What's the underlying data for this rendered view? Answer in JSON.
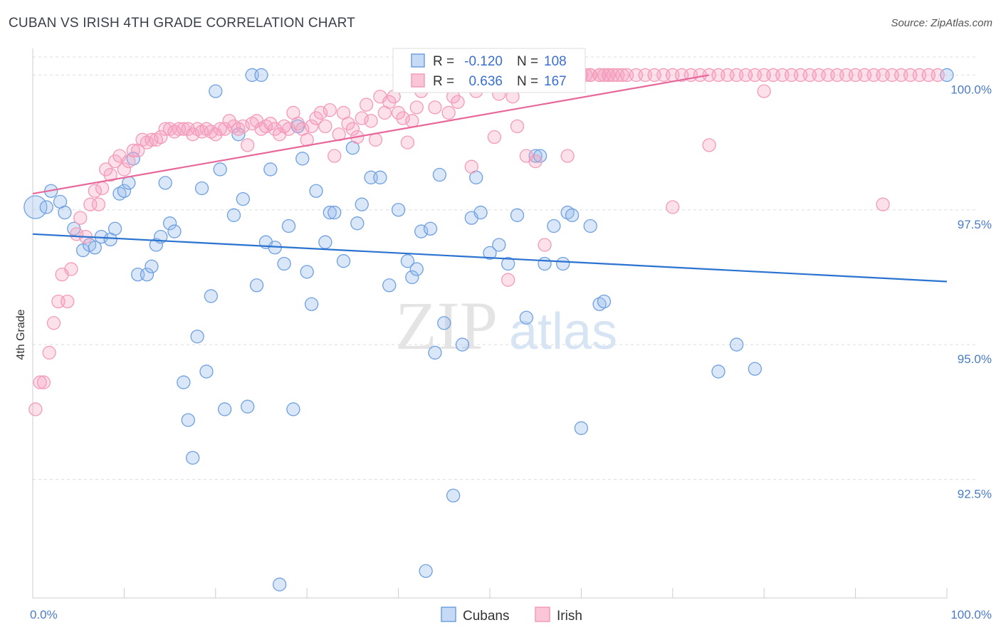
{
  "title": "CUBAN VS IRISH 4TH GRADE CORRELATION CHART",
  "source": "Source: ZipAtlas.com",
  "watermark": {
    "zip": "ZIP",
    "atlas": "atlas"
  },
  "chart_data": {
    "type": "scatter",
    "title": "CUBAN VS IRISH 4TH GRADE CORRELATION CHART",
    "xlabel": "",
    "ylabel": "4th Grade",
    "xlim": [
      0,
      100
    ],
    "ylim": [
      90.3,
      100.6
    ],
    "x_tick_labels": [
      "0.0%",
      "100.0%"
    ],
    "y_ticks": [
      92.5,
      95.0,
      97.5,
      100.0
    ],
    "y_tick_labels": [
      "92.5%",
      "95.0%",
      "97.5%",
      "100.0%"
    ],
    "grid": true,
    "legend_top": [
      {
        "r_label": "R =",
        "r_value": "-0.120",
        "n_label": "N =",
        "n_value": "108"
      },
      {
        "r_label": "R =",
        "r_value": "0.636",
        "n_label": "N =",
        "n_value": "167"
      }
    ],
    "series": [
      {
        "name": "Cubans",
        "color": "#6fa0e0",
        "line_color": "#2b73d0",
        "trend": {
          "x": [
            0,
            100
          ],
          "y": [
            97.05,
            96.17
          ]
        },
        "points": [
          [
            0.3,
            97.55
          ],
          [
            1.5,
            97.55
          ],
          [
            2,
            97.85
          ],
          [
            3,
            97.65
          ],
          [
            3.5,
            97.45
          ],
          [
            4.5,
            97.15
          ],
          [
            5.5,
            96.75
          ],
          [
            6.2,
            96.85
          ],
          [
            6.8,
            96.8
          ],
          [
            7.5,
            97.0
          ],
          [
            8.5,
            96.95
          ],
          [
            9,
            97.15
          ],
          [
            9.5,
            97.8
          ],
          [
            10,
            97.85
          ],
          [
            10.5,
            98.0
          ],
          [
            11,
            98.45
          ],
          [
            11.5,
            96.3
          ],
          [
            12.5,
            96.3
          ],
          [
            13,
            96.45
          ],
          [
            13.5,
            96.85
          ],
          [
            14,
            97.0
          ],
          [
            14.5,
            98.0
          ],
          [
            15,
            97.25
          ],
          [
            15.5,
            97.1
          ],
          [
            16.5,
            94.3
          ],
          [
            17,
            93.6
          ],
          [
            17.5,
            92.9
          ],
          [
            18,
            95.15
          ],
          [
            18.5,
            97.9
          ],
          [
            19,
            94.5
          ],
          [
            19.5,
            95.9
          ],
          [
            20,
            99.7
          ],
          [
            20.5,
            98.25
          ],
          [
            21,
            93.8
          ],
          [
            22,
            97.4
          ],
          [
            22.5,
            98.9
          ],
          [
            23,
            97.7
          ],
          [
            23.5,
            93.85
          ],
          [
            24,
            100.0
          ],
          [
            24.5,
            96.1
          ],
          [
            25,
            100.0
          ],
          [
            25.5,
            96.9
          ],
          [
            26,
            98.25
          ],
          [
            26.5,
            96.8
          ],
          [
            27,
            90.55
          ],
          [
            27.5,
            96.5
          ],
          [
            28,
            97.2
          ],
          [
            28.5,
            93.8
          ],
          [
            29,
            99.05
          ],
          [
            29.5,
            98.45
          ],
          [
            30,
            96.35
          ],
          [
            30.5,
            95.75
          ],
          [
            31,
            97.85
          ],
          [
            32,
            96.9
          ],
          [
            32.5,
            97.45
          ],
          [
            33,
            97.45
          ],
          [
            34,
            96.55
          ],
          [
            35,
            98.65
          ],
          [
            35.5,
            97.25
          ],
          [
            36,
            97.6
          ],
          [
            37,
            98.1
          ],
          [
            38,
            98.1
          ],
          [
            39,
            96.1
          ],
          [
            40,
            97.5
          ],
          [
            41,
            96.55
          ],
          [
            41.5,
            96.25
          ],
          [
            42,
            96.4
          ],
          [
            42.5,
            97.1
          ],
          [
            43,
            90.8
          ],
          [
            43.5,
            97.15
          ],
          [
            44,
            94.85
          ],
          [
            44.5,
            98.15
          ],
          [
            45,
            95.4
          ],
          [
            46,
            92.2
          ],
          [
            47,
            95.0
          ],
          [
            48,
            97.35
          ],
          [
            48.5,
            98.1
          ],
          [
            49,
            97.45
          ],
          [
            50,
            96.7
          ],
          [
            51,
            96.85
          ],
          [
            52,
            96.5
          ],
          [
            53,
            97.4
          ],
          [
            54,
            95.5
          ],
          [
            55,
            98.5
          ],
          [
            55.5,
            98.5
          ],
          [
            56,
            96.5
          ],
          [
            57,
            97.2
          ],
          [
            58,
            96.5
          ],
          [
            58.5,
            97.45
          ],
          [
            59,
            97.4
          ],
          [
            60,
            93.45
          ],
          [
            61,
            97.2
          ],
          [
            62,
            95.75
          ],
          [
            62.5,
            95.8
          ],
          [
            75,
            94.5
          ],
          [
            77,
            95.0
          ],
          [
            79,
            94.55
          ],
          [
            100,
            100.0
          ]
        ]
      },
      {
        "name": "Irish",
        "color": "#f39bb8",
        "line_color": "#e8679a",
        "trend": {
          "x": [
            0,
            74
          ],
          "y": [
            97.8,
            100.0
          ]
        },
        "points": [
          [
            0.3,
            93.8
          ],
          [
            0.8,
            94.3
          ],
          [
            1.2,
            94.3
          ],
          [
            1.8,
            94.85
          ],
          [
            2.3,
            95.4
          ],
          [
            2.8,
            95.8
          ],
          [
            3.2,
            96.3
          ],
          [
            3.8,
            95.8
          ],
          [
            4.2,
            96.4
          ],
          [
            4.8,
            97.05
          ],
          [
            5.2,
            97.35
          ],
          [
            5.8,
            97.0
          ],
          [
            6.3,
            97.6
          ],
          [
            6.8,
            97.85
          ],
          [
            7.2,
            97.6
          ],
          [
            7.6,
            97.9
          ],
          [
            8,
            98.25
          ],
          [
            8.5,
            98.15
          ],
          [
            9,
            98.4
          ],
          [
            9.5,
            98.5
          ],
          [
            10,
            98.25
          ],
          [
            10.5,
            98.4
          ],
          [
            11,
            98.6
          ],
          [
            11.5,
            98.6
          ],
          [
            12,
            98.8
          ],
          [
            12.5,
            98.75
          ],
          [
            13,
            98.8
          ],
          [
            13.5,
            98.8
          ],
          [
            14,
            98.85
          ],
          [
            14.5,
            99.0
          ],
          [
            15,
            99.0
          ],
          [
            15.5,
            98.95
          ],
          [
            16,
            99.0
          ],
          [
            16.5,
            99.0
          ],
          [
            17,
            99.0
          ],
          [
            17.5,
            98.9
          ],
          [
            18,
            99.0
          ],
          [
            18.5,
            98.95
          ],
          [
            19,
            99.0
          ],
          [
            19.5,
            98.95
          ],
          [
            20,
            98.9
          ],
          [
            20.5,
            99.0
          ],
          [
            21,
            99.0
          ],
          [
            21.5,
            99.15
          ],
          [
            22,
            99.05
          ],
          [
            22.5,
            99.0
          ],
          [
            23,
            99.05
          ],
          [
            23.5,
            98.7
          ],
          [
            24,
            99.1
          ],
          [
            24.5,
            99.15
          ],
          [
            25,
            99.0
          ],
          [
            25.5,
            99.05
          ],
          [
            26,
            99.1
          ],
          [
            26.5,
            99.0
          ],
          [
            27,
            98.9
          ],
          [
            27.5,
            99.05
          ],
          [
            28,
            99.0
          ],
          [
            28.5,
            99.3
          ],
          [
            29,
            99.1
          ],
          [
            29.5,
            99.0
          ],
          [
            30,
            98.8
          ],
          [
            30.5,
            99.05
          ],
          [
            31,
            99.2
          ],
          [
            31.5,
            99.3
          ],
          [
            32,
            99.05
          ],
          [
            32.5,
            99.35
          ],
          [
            33,
            98.5
          ],
          [
            33.5,
            98.9
          ],
          [
            34,
            99.3
          ],
          [
            34.5,
            99.1
          ],
          [
            35,
            99.0
          ],
          [
            35.5,
            98.85
          ],
          [
            36,
            99.2
          ],
          [
            36.5,
            99.45
          ],
          [
            37,
            99.15
          ],
          [
            37.5,
            98.8
          ],
          [
            38,
            99.6
          ],
          [
            38.5,
            99.3
          ],
          [
            39,
            99.5
          ],
          [
            39.5,
            99.6
          ],
          [
            40,
            99.3
          ],
          [
            40.5,
            99.2
          ],
          [
            41,
            98.75
          ],
          [
            41.5,
            99.15
          ],
          [
            42,
            99.4
          ],
          [
            42.5,
            99.7
          ],
          [
            43,
            100.0
          ],
          [
            43.5,
            99.8
          ],
          [
            44,
            99.4
          ],
          [
            44.5,
            100.0
          ],
          [
            45,
            99.85
          ],
          [
            45.5,
            99.3
          ],
          [
            46,
            99.6
          ],
          [
            46.5,
            99.5
          ],
          [
            47,
            100.0
          ],
          [
            47.5,
            100.0
          ],
          [
            48,
            98.3
          ],
          [
            48.5,
            99.7
          ],
          [
            49,
            99.9
          ],
          [
            50,
            100.0
          ],
          [
            50.5,
            98.85
          ],
          [
            51,
            99.65
          ],
          [
            51.5,
            100.0
          ],
          [
            52,
            96.2
          ],
          [
            52.5,
            99.6
          ],
          [
            53,
            99.05
          ],
          [
            53.5,
            100.0
          ],
          [
            54,
            98.5
          ],
          [
            54.5,
            99.8
          ],
          [
            55,
            98.4
          ],
          [
            55.5,
            100.0
          ],
          [
            56,
            96.85
          ],
          [
            57,
            100.0
          ],
          [
            58,
            100.0
          ],
          [
            58.5,
            98.5
          ],
          [
            59,
            100.0
          ],
          [
            60,
            100.0
          ],
          [
            60.5,
            100.0
          ],
          [
            61,
            100.0
          ],
          [
            62,
            100.0
          ],
          [
            62.5,
            100.0
          ],
          [
            63,
            100.0
          ],
          [
            63.5,
            100.0
          ],
          [
            64,
            100.0
          ],
          [
            64.5,
            100.0
          ],
          [
            65,
            100.0
          ],
          [
            66,
            100.0
          ],
          [
            67,
            100.0
          ],
          [
            68,
            100.0
          ],
          [
            69,
            100.0
          ],
          [
            70,
            100.0
          ],
          [
            71,
            100.0
          ],
          [
            72,
            100.0
          ],
          [
            73,
            100.0
          ],
          [
            74,
            100.0
          ],
          [
            75,
            100.0
          ],
          [
            76,
            100.0
          ],
          [
            77,
            100.0
          ],
          [
            78,
            100.0
          ],
          [
            79,
            100.0
          ],
          [
            80,
            100.0
          ],
          [
            81,
            100.0
          ],
          [
            82,
            100.0
          ],
          [
            83,
            100.0
          ],
          [
            84,
            100.0
          ],
          [
            85,
            100.0
          ],
          [
            86,
            100.0
          ],
          [
            87,
            100.0
          ],
          [
            88,
            100.0
          ],
          [
            89,
            100.0
          ],
          [
            90,
            100.0
          ],
          [
            91,
            100.0
          ],
          [
            92,
            100.0
          ],
          [
            93,
            100.0
          ],
          [
            94,
            100.0
          ],
          [
            95,
            100.0
          ],
          [
            96,
            100.0
          ],
          [
            97,
            100.0
          ],
          [
            98,
            100.0
          ],
          [
            99,
            100.0
          ],
          [
            80,
            99.7
          ],
          [
            74,
            98.7
          ],
          [
            93,
            97.6
          ],
          [
            70,
            97.55
          ],
          [
            59,
            100.0
          ],
          [
            60,
            100.0
          ],
          [
            61,
            100.0
          ],
          [
            62,
            100.0
          ],
          [
            63,
            100.0
          ]
        ]
      }
    ]
  }
}
